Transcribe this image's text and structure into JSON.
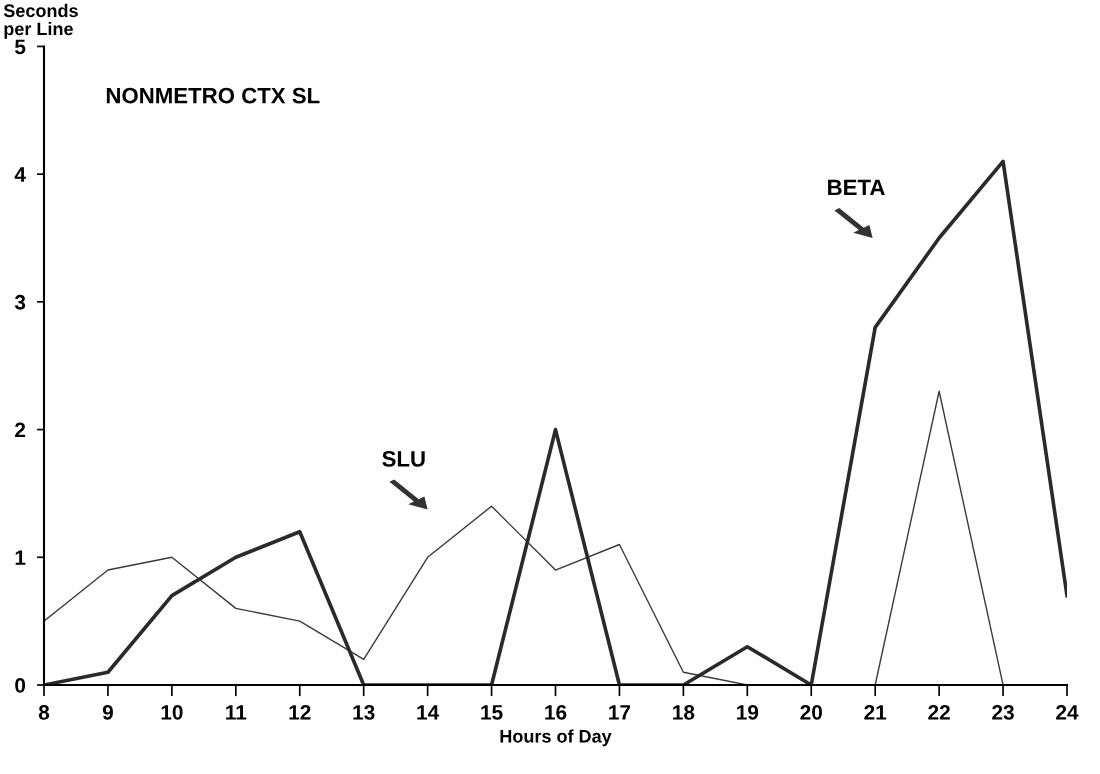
{
  "chart_data": {
    "type": "line",
    "title": "NONMETRO CTX SL",
    "xlabel": "Hours of Day",
    "ylabel": "Seconds\nper Line",
    "x": [
      8,
      9,
      10,
      11,
      12,
      13,
      14,
      15,
      16,
      17,
      18,
      19,
      20,
      21,
      22,
      23,
      24
    ],
    "series": [
      {
        "color": "#3a3a3a",
        "values": [
          0.5,
          0.9,
          1.0,
          0.6,
          0.5,
          0.2,
          1.0,
          1.4,
          0.9,
          1.1,
          0.1,
          0,
          0,
          0,
          2.3,
          0,
          null
        ]
      },
      {
        "color": "#2a2a2a",
        "values": [
          0,
          0.1,
          0.7,
          1.0,
          1.2,
          0,
          0,
          0,
          2.0,
          0,
          0,
          0.3,
          0,
          2.8,
          3.5,
          4.1,
          0.7
        ]
      }
    ],
    "annotations": [
      "SLU",
      "BETA"
    ],
    "xlim": [
      8,
      24
    ],
    "xticks": [
      8,
      9,
      10,
      11,
      12,
      13,
      14,
      15,
      16,
      17,
      18,
      19,
      20,
      21,
      22,
      23,
      24
    ],
    "ylim": [
      0,
      5
    ],
    "yticks": [
      0,
      1,
      2,
      3,
      4,
      5
    ],
    "grid": false,
    "legend": false,
    "marker": "none",
    "line_style": "solid"
  }
}
